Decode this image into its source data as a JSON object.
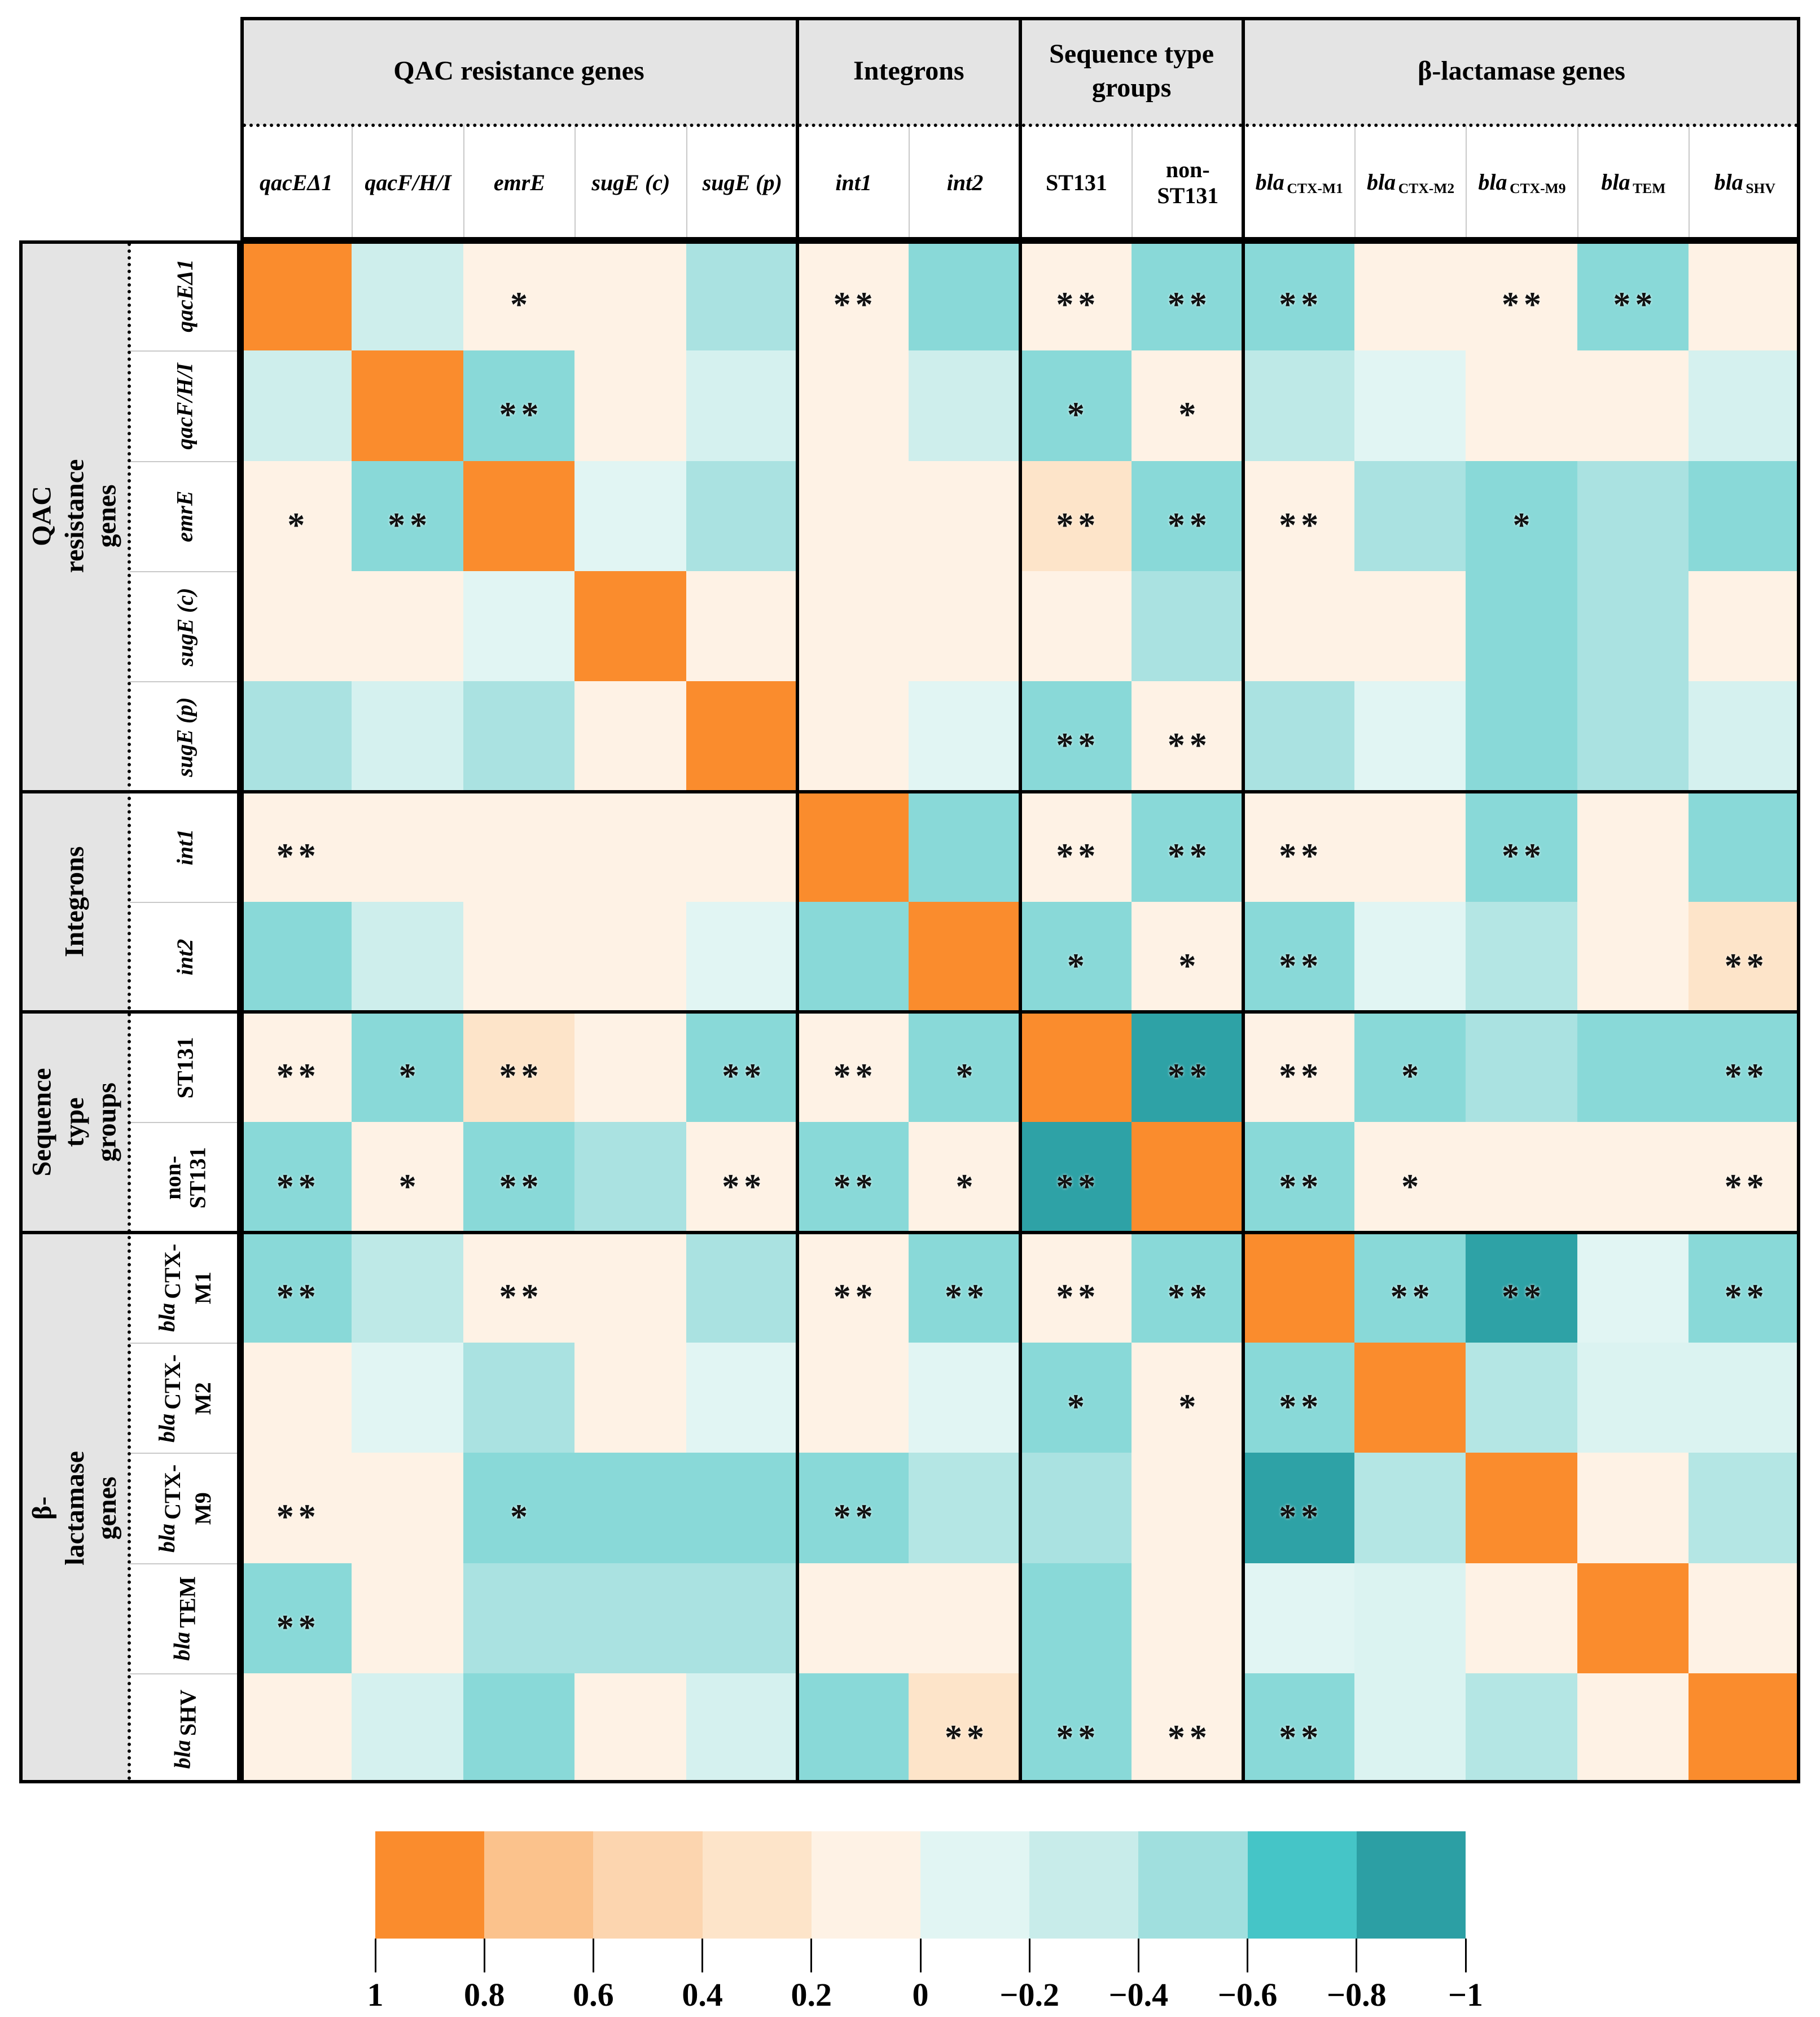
{
  "figure": {
    "kind": "correlation heatmap table",
    "background": "#ffffff",
    "grid_header_bg": "#E4E4E4"
  },
  "groups": [
    {
      "label": "QAC resistance genes",
      "span": 5
    },
    {
      "label": "Integrons",
      "span": 2
    },
    {
      "label": "Sequence type groups",
      "span": 2
    },
    {
      "label": "β-lactamase genes",
      "span": 5
    }
  ],
  "variables": [
    {
      "label": "qacEΔ1",
      "italic": true
    },
    {
      "label": "qacF/H/I",
      "italic": true
    },
    {
      "label": "emrE",
      "italic": true
    },
    {
      "label": "sugE (c)",
      "italic": true
    },
    {
      "label": "sugE (p)",
      "italic": true
    },
    {
      "label": "int1",
      "italic": true
    },
    {
      "label": "int2",
      "italic": true
    },
    {
      "label": "ST131",
      "italic": false
    },
    {
      "label": "non-\nST131",
      "italic": false
    },
    {
      "main": "bla",
      "sub": "CTX-M1",
      "italic": true,
      "label": "bla CTX-M1"
    },
    {
      "main": "bla",
      "sub": "CTX-M2",
      "italic": true,
      "label": "bla CTX-M2"
    },
    {
      "main": "bla",
      "sub": "CTX-M9",
      "italic": true,
      "label": "bla CTX-M9"
    },
    {
      "main": "bla",
      "sub": "TEM",
      "italic": true,
      "label": "bla TEM"
    },
    {
      "main": "bla",
      "sub": "SHV",
      "italic": true,
      "label": "bla SHV"
    }
  ],
  "chart_data": {
    "type": "heatmap",
    "title": "",
    "variables": [
      "qacEΔ1",
      "qacF/H/I",
      "emrE",
      "sugE (c)",
      "sugE (p)",
      "int1",
      "int2",
      "ST131",
      "non-ST131",
      "bla CTX-M1",
      "bla CTX-M2",
      "bla CTX-M9",
      "bla TEM",
      "bla SHV"
    ],
    "variable_groups": [
      "QAC resistance genes",
      "QAC resistance genes",
      "QAC resistance genes",
      "QAC resistance genes",
      "QAC resistance genes",
      "Integrons",
      "Integrons",
      "Sequence type groups",
      "Sequence type groups",
      "β-lactamase genes",
      "β-lactamase genes",
      "β-lactamase genes",
      "β-lactamase genes",
      "β-lactamase genes"
    ],
    "values": [
      [
        1.0,
        -0.25,
        0.1,
        0.1,
        -0.45,
        0.1,
        -0.55,
        0.1,
        -0.55,
        -0.55,
        0.1,
        0.1,
        -0.55,
        0.1
      ],
      [
        -0.25,
        1.0,
        -0.55,
        0.1,
        -0.2,
        0.1,
        -0.25,
        -0.55,
        0.1,
        -0.35,
        -0.1,
        0.1,
        0.1,
        -0.2
      ],
      [
        0.1,
        -0.55,
        1.0,
        -0.1,
        -0.45,
        0.1,
        0.1,
        0.3,
        -0.55,
        0.1,
        -0.45,
        -0.55,
        -0.45,
        -0.55
      ],
      [
        0.1,
        0.1,
        -0.1,
        1.0,
        0.1,
        0.1,
        0.1,
        0.1,
        -0.45,
        0.1,
        0.1,
        -0.55,
        -0.45,
        0.1
      ],
      [
        -0.45,
        -0.2,
        -0.45,
        0.1,
        1.0,
        0.1,
        -0.1,
        -0.55,
        0.1,
        -0.45,
        -0.1,
        -0.55,
        -0.45,
        -0.2
      ],
      [
        0.1,
        0.1,
        0.1,
        0.1,
        0.1,
        1.0,
        -0.55,
        0.1,
        -0.55,
        0.1,
        0.1,
        -0.55,
        0.1,
        -0.55
      ],
      [
        -0.55,
        -0.25,
        0.1,
        0.1,
        -0.1,
        -0.55,
        1.0,
        -0.55,
        0.1,
        -0.55,
        -0.1,
        -0.4,
        0.1,
        0.3
      ],
      [
        0.1,
        -0.55,
        0.3,
        0.1,
        -0.55,
        0.1,
        -0.55,
        1.0,
        -0.85,
        0.1,
        -0.55,
        -0.45,
        -0.55,
        -0.55
      ],
      [
        -0.55,
        0.1,
        -0.55,
        -0.45,
        0.1,
        -0.55,
        0.1,
        -0.85,
        1.0,
        -0.55,
        0.1,
        0.1,
        0.1,
        0.1
      ],
      [
        -0.55,
        -0.35,
        0.1,
        0.1,
        -0.45,
        0.1,
        -0.55,
        0.1,
        -0.55,
        1.0,
        -0.55,
        -0.85,
        -0.1,
        -0.55
      ],
      [
        0.1,
        -0.1,
        -0.45,
        0.1,
        -0.1,
        0.1,
        -0.1,
        -0.55,
        0.1,
        -0.55,
        1.0,
        -0.4,
        -0.15,
        -0.15
      ],
      [
        0.1,
        0.1,
        -0.55,
        -0.55,
        -0.55,
        -0.55,
        -0.4,
        -0.45,
        0.1,
        -0.85,
        -0.4,
        1.0,
        0.1,
        -0.4
      ],
      [
        -0.55,
        0.1,
        -0.45,
        -0.45,
        -0.45,
        0.1,
        0.1,
        -0.55,
        0.1,
        -0.1,
        -0.15,
        0.1,
        1.0,
        0.1
      ],
      [
        0.1,
        -0.2,
        -0.55,
        0.1,
        -0.2,
        -0.55,
        0.3,
        -0.55,
        0.1,
        -0.55,
        -0.15,
        -0.4,
        0.1,
        1.0
      ]
    ],
    "significance": [
      [
        "",
        "",
        "*",
        "",
        "",
        "**",
        "",
        "**",
        "**",
        "**",
        "",
        "**",
        "**",
        ""
      ],
      [
        "",
        "",
        "**",
        "",
        "",
        "",
        "",
        "*",
        "*",
        "",
        "",
        "",
        "",
        ""
      ],
      [
        "*",
        "**",
        "",
        "",
        "",
        "",
        "",
        "**",
        "**",
        "**",
        "",
        "*",
        "",
        ""
      ],
      [
        "",
        "",
        "",
        "",
        "",
        "",
        "",
        "",
        "",
        "",
        "",
        "",
        "",
        ""
      ],
      [
        "",
        "",
        "",
        "",
        "",
        "",
        "",
        "**",
        "**",
        "",
        "",
        "",
        "",
        ""
      ],
      [
        "**",
        "",
        "",
        "",
        "",
        "",
        "",
        "**",
        "**",
        "**",
        "",
        "**",
        "",
        ""
      ],
      [
        "",
        "",
        "",
        "",
        "",
        "",
        "",
        "*",
        "*",
        "**",
        "",
        "",
        "",
        "**"
      ],
      [
        "**",
        "*",
        "**",
        "",
        "**",
        "**",
        "*",
        "",
        "**",
        "**",
        "*",
        "",
        "",
        "**"
      ],
      [
        "**",
        "*",
        "**",
        "",
        "**",
        "**",
        "*",
        "**",
        "",
        "**",
        "*",
        "",
        "",
        "**"
      ],
      [
        "**",
        "",
        "**",
        "",
        "",
        "**",
        "**",
        "**",
        "**",
        "",
        "**",
        "**",
        "",
        "**"
      ],
      [
        "",
        "",
        "",
        "",
        "",
        "",
        "",
        "*",
        "*",
        "**",
        "",
        "",
        "",
        ""
      ],
      [
        "**",
        "",
        "*",
        "",
        "",
        "**",
        "",
        "",
        "",
        "**",
        "",
        "",
        "",
        ""
      ],
      [
        "**",
        "",
        "",
        "",
        "",
        "",
        "",
        "",
        "",
        "",
        "",
        "",
        "",
        ""
      ],
      [
        "",
        "",
        "",
        "",
        "",
        "",
        "**",
        "**",
        "**",
        "**",
        "",
        "",
        "",
        ""
      ]
    ],
    "color_scale": {
      "orientation": "horizontal",
      "range": [
        1,
        -1
      ],
      "legend_ticks": [
        "1",
        "0.8",
        "0.6",
        "0.4",
        "0.2",
        "0",
        "−0.2",
        "−0.4",
        "−0.6",
        "−0.8",
        "−1"
      ],
      "legend_colors": [
        "#FA8C2D",
        "#FBC28C",
        "#FCD5AF",
        "#FDE4C9",
        "#FEF2E5",
        "#E1F5F3",
        "#C8ECEA",
        "#A0DFDE",
        "#45C5C7",
        "#2C9FA4"
      ],
      "stops": [
        [
          1.0,
          "#FA8C2D"
        ],
        [
          0.8,
          "#FA8C2D"
        ],
        [
          0.7,
          "#FBC28C"
        ],
        [
          0.5,
          "#FCD5AF"
        ],
        [
          0.3,
          "#FDE4C9"
        ],
        [
          0.1,
          "#FEF2E5"
        ],
        [
          -0.1,
          "#E1F5F3"
        ],
        [
          -0.3,
          "#C8ECEA"
        ],
        [
          -0.5,
          "#A0DFDE"
        ],
        [
          -0.7,
          "#45C5C7"
        ],
        [
          -0.85,
          "#2EA2A6"
        ],
        [
          -1.0,
          "#2C9FA4"
        ]
      ]
    },
    "annotations": {
      "star_meaning": "significance markers shown as * and ** inside cells"
    },
    "grid": false,
    "legend_position": "bottom-center"
  }
}
